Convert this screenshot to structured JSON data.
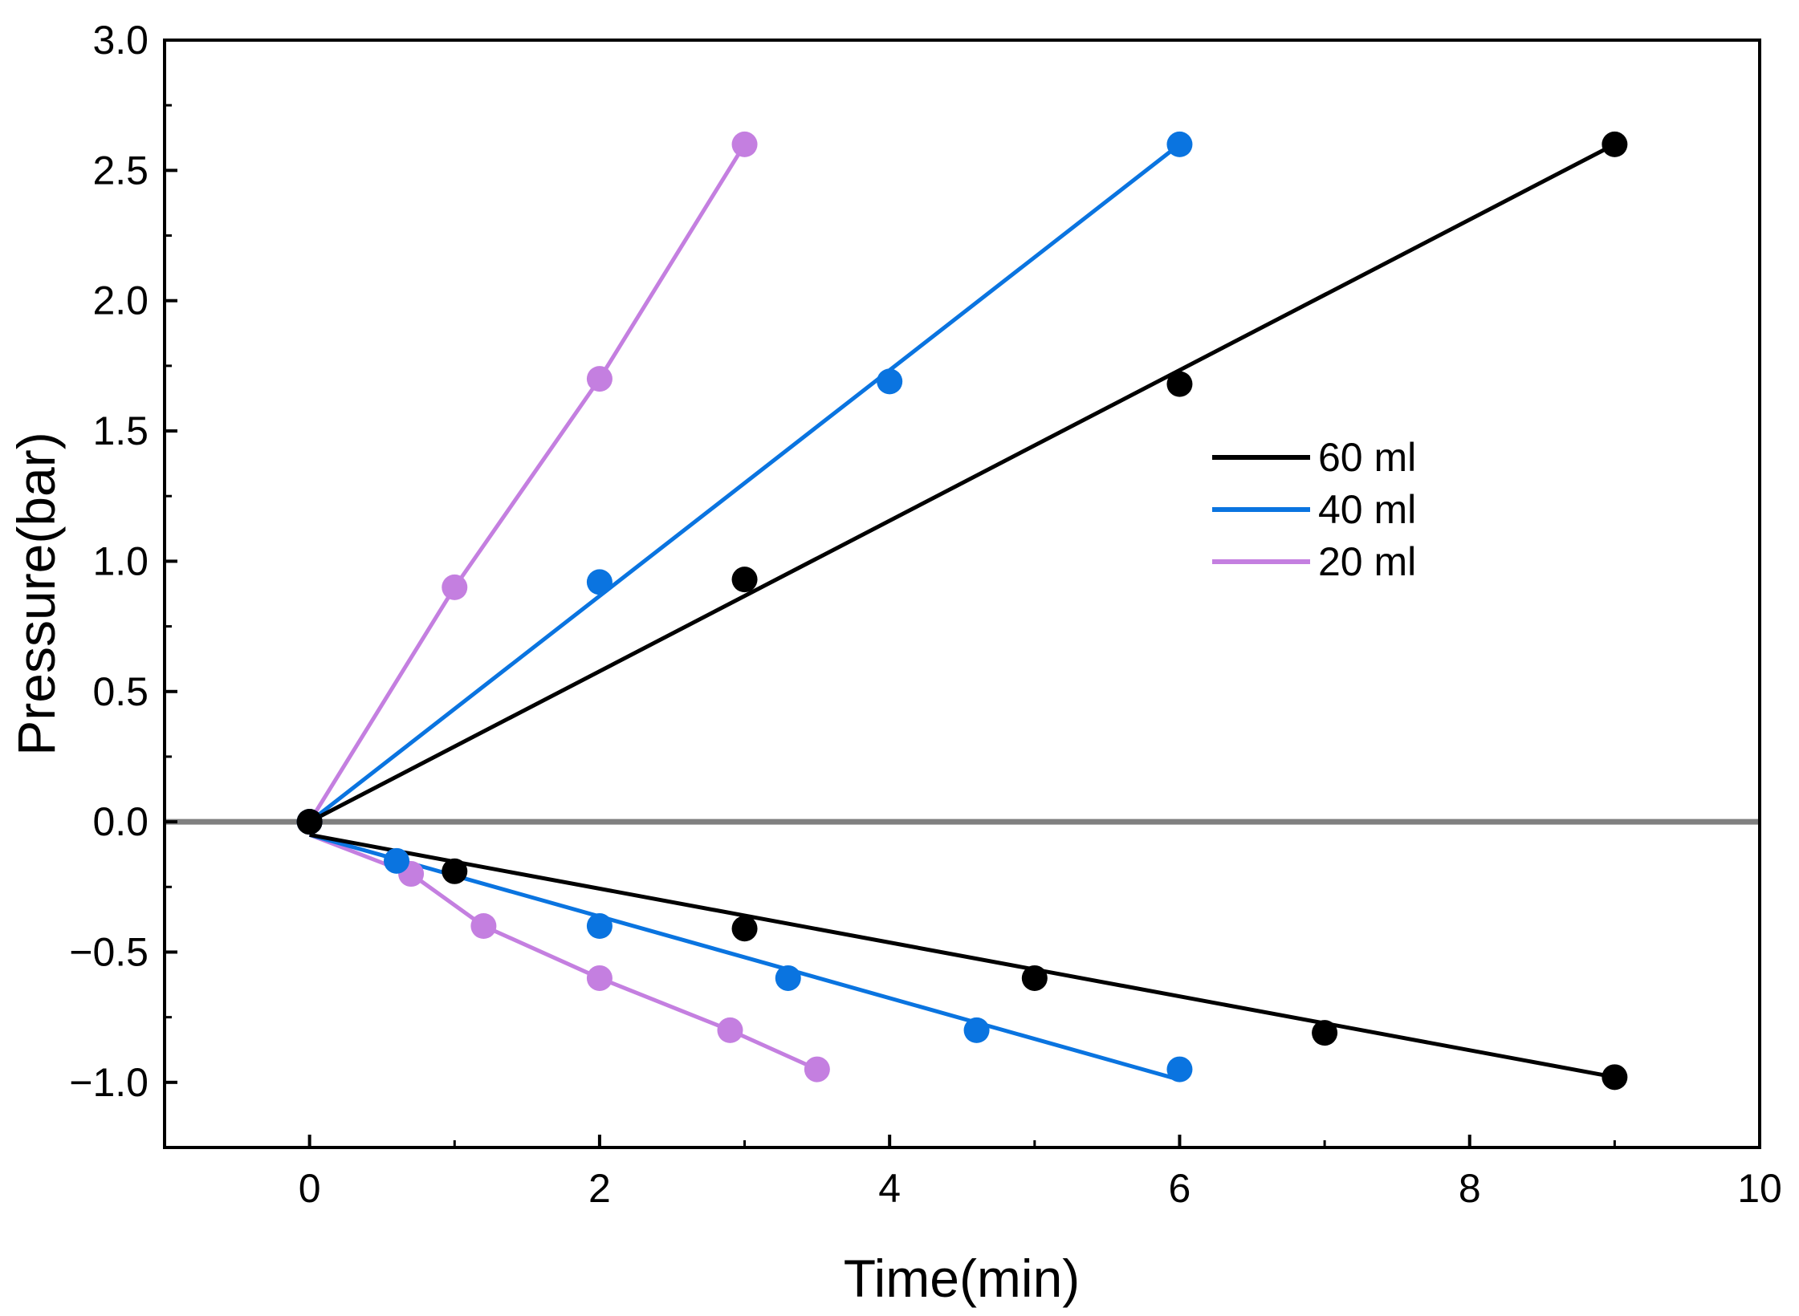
{
  "chart_data": {
    "type": "scatter",
    "title": "",
    "xlabel": "Time(min)",
    "ylabel": "Pressure(bar)",
    "xlim": [
      -1,
      10
    ],
    "ylim": [
      -1.25,
      3.0
    ],
    "xticks": [
      0,
      2,
      4,
      6,
      8,
      10
    ],
    "xtick_labels": [
      "0",
      "2",
      "4",
      "6",
      "8",
      "10"
    ],
    "yticks": [
      -1.0,
      -0.5,
      0.0,
      0.5,
      1.0,
      1.5,
      2.0,
      2.5,
      3.0
    ],
    "ytick_labels": [
      "−1.0",
      "−0.5",
      "0.0",
      "0.5",
      "1.0",
      "1.5",
      "2.0",
      "2.5",
      "3.0"
    ],
    "grid": false,
    "legend_position": "center-right",
    "reference_line": {
      "y": 0,
      "color": "#808080"
    },
    "series": [
      {
        "name": "60 ml",
        "legend_label": "60 ml",
        "color": "#000000",
        "points_up": [
          [
            0,
            0
          ],
          [
            3,
            0.93
          ],
          [
            6,
            1.68
          ],
          [
            9,
            2.6
          ]
        ],
        "fit_up": [
          [
            0,
            0
          ],
          [
            9,
            2.6
          ]
        ],
        "points_down": [
          [
            0,
            0
          ],
          [
            1,
            -0.19
          ],
          [
            3,
            -0.41
          ],
          [
            5,
            -0.6
          ],
          [
            7,
            -0.81
          ],
          [
            9,
            -0.98
          ]
        ],
        "fit_down": [
          [
            0,
            -0.05
          ],
          [
            9,
            -0.98
          ]
        ]
      },
      {
        "name": "40 ml",
        "legend_label": "40 ml",
        "color": "#0a74e0",
        "points_up": [
          [
            0,
            0
          ],
          [
            2,
            0.92
          ],
          [
            4,
            1.69
          ],
          [
            6,
            2.6
          ]
        ],
        "fit_up": [
          [
            0,
            0
          ],
          [
            6,
            2.6
          ]
        ],
        "points_down": [
          [
            0,
            0
          ],
          [
            0.6,
            -0.15
          ],
          [
            2,
            -0.4
          ],
          [
            3.3,
            -0.6
          ],
          [
            4.6,
            -0.8
          ],
          [
            6,
            -0.95
          ]
        ],
        "fit_down": [
          [
            0,
            -0.05
          ],
          [
            6,
            -0.99
          ]
        ]
      },
      {
        "name": "20 ml",
        "legend_label": "20 ml",
        "color": "#c47fe0",
        "points_up": [
          [
            0,
            0
          ],
          [
            1,
            0.9
          ],
          [
            2,
            1.7
          ],
          [
            3,
            2.6
          ]
        ],
        "fit_up": [
          [
            0,
            0
          ],
          [
            1,
            0.9
          ],
          [
            2,
            1.7
          ],
          [
            3,
            2.6
          ]
        ],
        "points_down": [
          [
            0,
            0
          ],
          [
            0.7,
            -0.2
          ],
          [
            1.2,
            -0.4
          ],
          [
            2,
            -0.6
          ],
          [
            2.9,
            -0.8
          ],
          [
            3.5,
            -0.95
          ]
        ],
        "fit_down": [
          [
            0,
            -0.05
          ],
          [
            0.7,
            -0.2
          ],
          [
            1.2,
            -0.4
          ],
          [
            2,
            -0.6
          ],
          [
            2.9,
            -0.8
          ],
          [
            3.5,
            -0.95
          ]
        ]
      }
    ]
  }
}
